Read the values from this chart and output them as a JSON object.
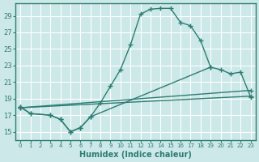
{
  "xlabel": "Humidex (Indice chaleur)",
  "background_color": "#cce8e8",
  "grid_color": "#ffffff",
  "line_color": "#2e7d72",
  "xlim": [
    -0.5,
    23.5
  ],
  "ylim": [
    14.0,
    30.5
  ],
  "xticks": [
    0,
    1,
    2,
    3,
    4,
    5,
    6,
    7,
    8,
    9,
    10,
    11,
    12,
    13,
    14,
    15,
    16,
    17,
    18,
    19,
    20,
    21,
    22,
    23
  ],
  "yticks": [
    15,
    17,
    19,
    21,
    23,
    25,
    27,
    29
  ],
  "curve1_x": [
    0,
    1,
    3,
    4,
    5,
    6,
    7,
    8,
    9,
    10,
    11,
    12,
    13,
    14,
    15,
    16,
    17,
    18,
    19
  ],
  "curve1_y": [
    18.0,
    17.2,
    17.0,
    16.5,
    15.0,
    15.5,
    16.8,
    18.5,
    20.5,
    22.5,
    25.5,
    29.2,
    29.8,
    29.9,
    29.9,
    28.2,
    27.8,
    26.0,
    22.8
  ],
  "curve2_x": [
    0,
    1,
    3,
    4,
    5,
    6,
    7,
    19,
    20,
    21,
    22,
    23
  ],
  "curve2_y": [
    18.0,
    17.2,
    17.0,
    16.5,
    15.0,
    15.5,
    16.8,
    22.8,
    22.5,
    22.0,
    22.2,
    19.2
  ],
  "line3_x": [
    0,
    23
  ],
  "line3_y": [
    17.9,
    20.0
  ],
  "line4_x": [
    0,
    23
  ],
  "line4_y": [
    17.9,
    19.3
  ],
  "marker": "+",
  "markersize": 4,
  "linewidth": 1.0
}
